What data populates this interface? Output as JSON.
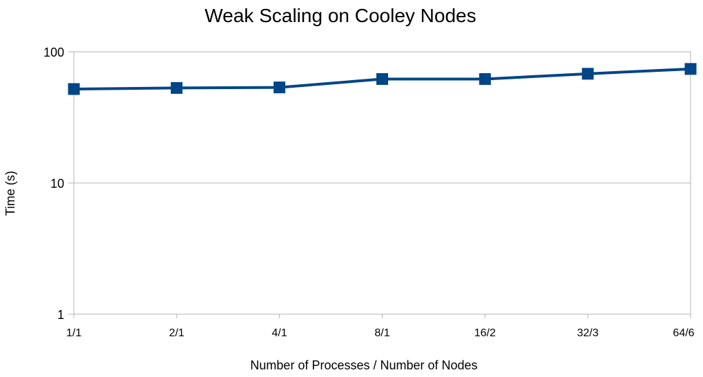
{
  "chart_data": {
    "type": "line",
    "title": "Weak Scaling on Cooley Nodes",
    "xlabel": "Number of Processes / Number of Nodes",
    "ylabel": "Time (s)",
    "yscale": "log",
    "ylim": [
      1,
      100
    ],
    "yticks": [
      {
        "value": 1,
        "label": "1"
      },
      {
        "value": 10,
        "label": "10"
      },
      {
        "value": 100,
        "label": "100"
      }
    ],
    "categories": [
      "1/1",
      "2/1",
      "4/1",
      "8/1",
      "16/2",
      "32/3",
      "64/6"
    ],
    "series": [
      {
        "values": [
          52,
          53,
          53.5,
          62,
          62,
          68,
          74
        ],
        "color": "#004586"
      }
    ],
    "grid": true,
    "legend": "none"
  }
}
